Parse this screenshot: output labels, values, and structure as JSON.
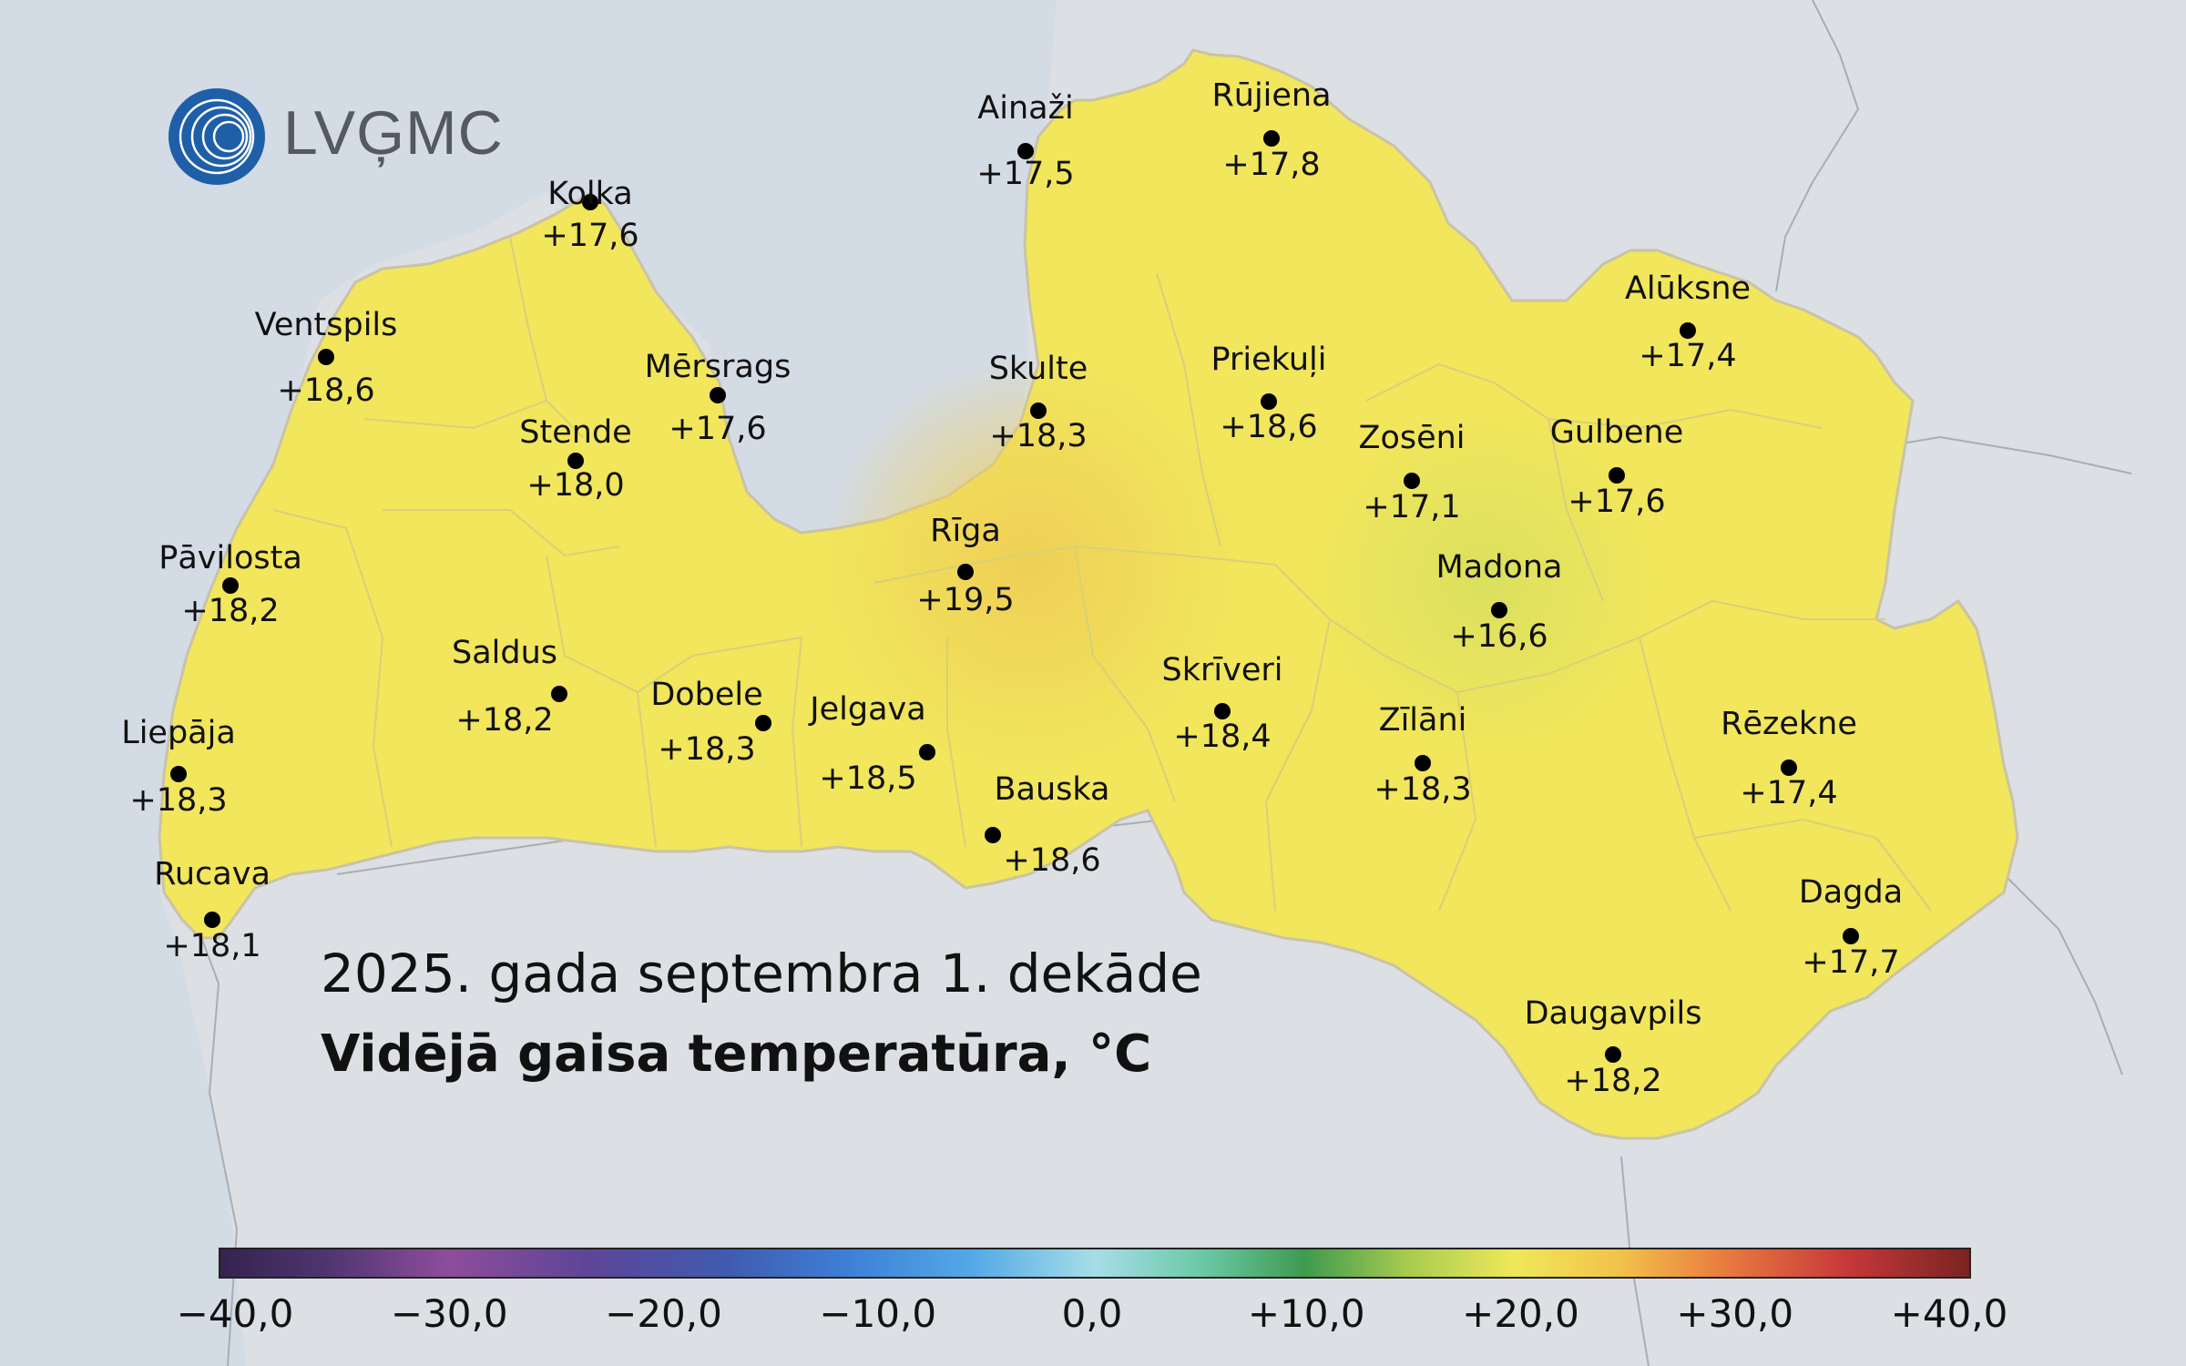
{
  "logo": {
    "text": "LVĢMC"
  },
  "title": {
    "line1": "2025. gada septembra 1. dekāde",
    "line2": "Vidējā gaisa temperatūra, °C"
  },
  "colors": {
    "sea": "#d3dbe5",
    "land_outside": "#dcdfe3",
    "latvia_fill": "#f1e65c",
    "warm_fill": "#f0d65a",
    "cool_fill": "#e2e35e",
    "border": "#c9c3a8",
    "logo_blue": "#1f5fa8"
  },
  "stations": [
    {
      "name": "Kolka",
      "value": "+17,6"
    },
    {
      "name": "Ventspils",
      "value": "+18,6"
    },
    {
      "name": "Mērsrags",
      "value": "+17,6"
    },
    {
      "name": "Stende",
      "value": "+18,0"
    },
    {
      "name": "Pāvilosta",
      "value": "+18,2"
    },
    {
      "name": "Saldus",
      "value": "+18,2"
    },
    {
      "name": "Dobele",
      "value": "+18,3"
    },
    {
      "name": "Liepāja",
      "value": "+18,3"
    },
    {
      "name": "Rucava",
      "value": "+18,1"
    },
    {
      "name": "Jelgava",
      "value": "+18,5"
    },
    {
      "name": "Bauska",
      "value": "+18,6"
    },
    {
      "name": "Rīga",
      "value": "+19,5"
    },
    {
      "name": "Skulte",
      "value": "+18,3"
    },
    {
      "name": "Ainaži",
      "value": "+17,5"
    },
    {
      "name": "Rūjiena",
      "value": "+17,8"
    },
    {
      "name": "Priekuļi",
      "value": "+18,6"
    },
    {
      "name": "Zosēni",
      "value": "+17,1"
    },
    {
      "name": "Gulbene",
      "value": "+17,6"
    },
    {
      "name": "Alūksne",
      "value": "+17,4"
    },
    {
      "name": "Madona",
      "value": "+16,6"
    },
    {
      "name": "Skrīveri",
      "value": "+18,4"
    },
    {
      "name": "Zīlāni",
      "value": "+18,3"
    },
    {
      "name": "Rēzekne",
      "value": "+17,4"
    },
    {
      "name": "Dagda",
      "value": "+17,7"
    },
    {
      "name": "Daugavpils",
      "value": "+18,2"
    }
  ],
  "legend": {
    "ticks": [
      "−40,0",
      "−30,0",
      "−20,0",
      "−10,0",
      "0,0",
      "+10,0",
      "+20,0",
      "+30,0",
      "+40,0"
    ]
  }
}
